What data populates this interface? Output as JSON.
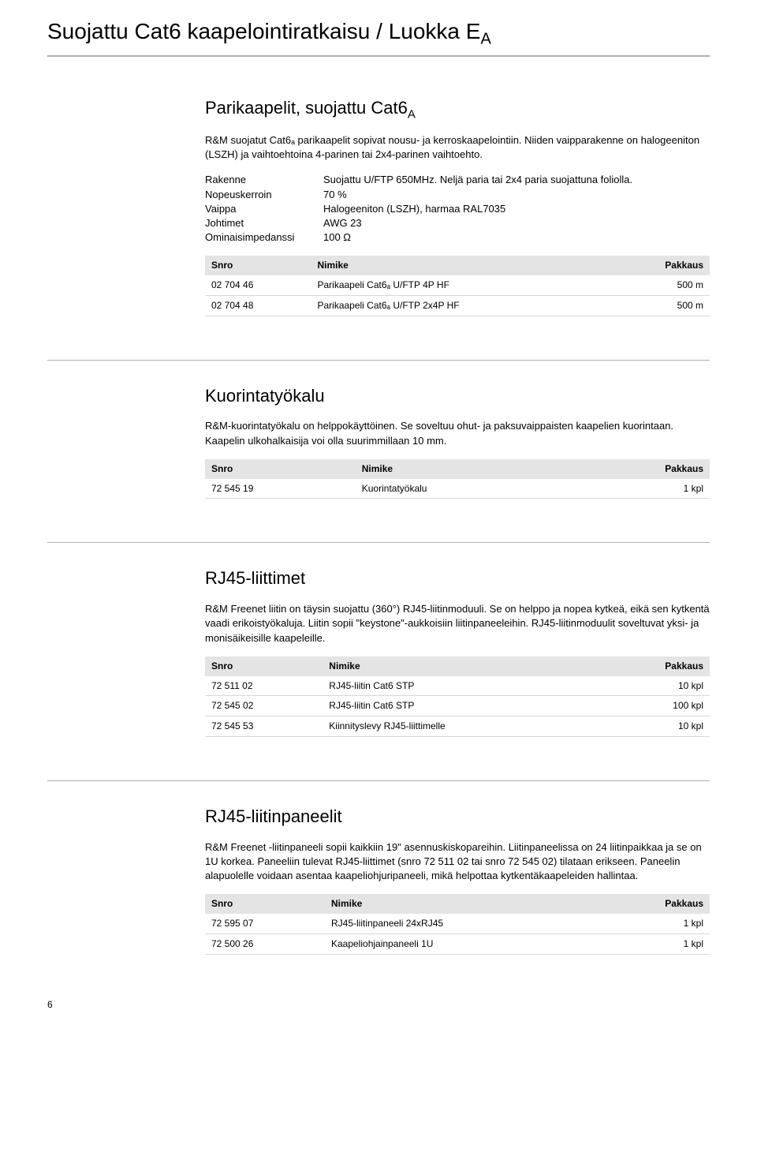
{
  "page": {
    "title_pre": "Suojattu Cat6 kaapelointiratkaisu / Luokka E",
    "title_sub": "A",
    "page_number": "6",
    "table_headers": {
      "snro": "Snro",
      "nimike": "Nimike",
      "pakkaus": "Pakkaus"
    }
  },
  "sections": [
    {
      "heading_pre": "Parikaapelit, suojattu Cat6",
      "heading_sub": "A",
      "desc": "R&M suojatut Cat6ₐ  parikaapelit sopivat nousu- ja kerroskaapelointiin. Niiden vaipparakenne on halogeeniton (LSZH) ja vaihtoehtoina 4-parinen tai 2x4-parinen vaihtoehto.",
      "specs": [
        {
          "label": "Rakenne",
          "value": "Suojattu U/FTP 650MHz. Neljä paria tai 2x4 paria suojattuna foliolla."
        },
        {
          "label": "Nopeuskerroin",
          "value": "70 %"
        },
        {
          "label": "Vaippa",
          "value": "Halogeeniton (LSZH), harmaa RAL7035"
        },
        {
          "label": "Johtimet",
          "value": "AWG 23"
        },
        {
          "label": "Ominaisimpedanssi",
          "value": "100 Ω"
        }
      ],
      "rows": [
        {
          "snro": "02 704 46",
          "nimike": "Parikaapeli Cat6ₐ U/FTP 4P HF",
          "pakkaus": "500 m"
        },
        {
          "snro": "02 704 48",
          "nimike": "Parikaapeli Cat6ₐ U/FTP 2x4P HF",
          "pakkaus": "500 m"
        }
      ]
    },
    {
      "heading_pre": "Kuorintatyökalu",
      "heading_sub": "",
      "desc": "R&M-kuorintatyökalu on helppokäyttöinen. Se soveltuu ohut- ja paksuvaippaisten kaapelien kuorintaan. Kaapelin ulkohalkaisija voi olla suurimmillaan 10 mm.",
      "specs": [],
      "rows": [
        {
          "snro": "72 545 19",
          "nimike": "Kuorintatyökalu",
          "pakkaus": "1 kpl"
        }
      ]
    },
    {
      "heading_pre": "RJ45-liittimet",
      "heading_sub": "",
      "desc": "R&M Freenet liitin on täysin suojattu (360°) RJ45-liitinmoduuli. Se on helppo ja nopea kytkeä, eikä sen kytkentä vaadi erikoistyökaluja. Liitin sopii \"keystone\"-aukkoisiin liitinpaneeleihin. RJ45-liitinmoduulit soveltuvat yksi- ja monisäikeisille kaapeleille.",
      "specs": [],
      "rows": [
        {
          "snro": "72 511 02",
          "nimike": "RJ45-liitin Cat6 STP",
          "pakkaus": "10 kpl"
        },
        {
          "snro": "72 545 02",
          "nimike": "RJ45-liitin Cat6 STP",
          "pakkaus": "100 kpl"
        },
        {
          "snro": "72 545 53",
          "nimike": "Kiinnityslevy RJ45-liittimelle",
          "pakkaus": "10 kpl"
        }
      ]
    },
    {
      "heading_pre": "RJ45-liitinpaneelit",
      "heading_sub": "",
      "desc": "R&M Freenet -liitinpaneeli sopii kaikkiin 19\" asennuskiskopareihin. Liitinpaneelissa on 24 liitinpaikkaa ja se on 1U korkea. Paneeliin tulevat RJ45-liittimet (snro 72 511 02 tai snro 72 545 02) tilataan erikseen. Paneelin alapuolelle voidaan asentaa kaapeliohjuripaneeli, mikä helpottaa kytkentäkaapeleiden hallintaa.",
      "specs": [],
      "rows": [
        {
          "snro": "72 595 07",
          "nimike": "RJ45-liitinpaneeli 24xRJ45",
          "pakkaus": "1 kpl"
        },
        {
          "snro": "72 500 26",
          "nimike": "Kaapeliohjainpaneeli 1U",
          "pakkaus": "1 kpl"
        }
      ]
    }
  ]
}
